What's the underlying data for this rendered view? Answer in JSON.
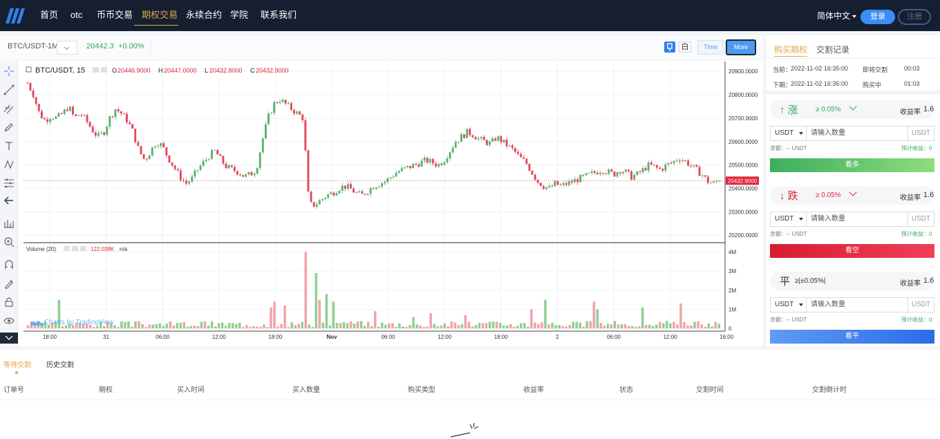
{
  "nav": {
    "items": [
      "首页",
      "otc",
      "币币交易",
      "期权交易",
      "永续合约",
      "学院",
      "联系我们"
    ],
    "active_index": 3,
    "language": "简体中文",
    "login": "登录",
    "register": "注册"
  },
  "chart_toolbar": {
    "symbol": "BTC/USDT-1M",
    "price": "20442.3",
    "change": "+0.00%",
    "theme_label": "白",
    "time_label": "Time",
    "more_label": "More"
  },
  "chart_data": {
    "type": "candlestick",
    "legend_symbol": "BTC/USDT, 15",
    "ohlc": {
      "O": "20446.9000",
      "H": "20447.0000",
      "L": "20432.8000",
      "C": "20432.9000"
    },
    "current_price_label": "20432.9000",
    "current_price": 20432.9,
    "y_ticks": [
      "20900.0000",
      "20800.0000",
      "20700.0000",
      "20600.0000",
      "20500.0000",
      "20400.0000",
      "20300.0000",
      "20200.0000"
    ],
    "ylim": [
      20180,
      20930
    ],
    "x_ticks": [
      "18:00",
      "31",
      "06:00",
      "12:00",
      "18:00",
      "Nov",
      "06:00",
      "12:00",
      "18:00",
      "2",
      "06:00",
      "12:00",
      "16:00"
    ],
    "close_path": [
      20850,
      20800,
      20720,
      20690,
      20710,
      20700,
      20720,
      20750,
      20700,
      20720,
      20690,
      20650,
      20620,
      20640,
      20700,
      20740,
      20720,
      20690,
      20640,
      20560,
      20520,
      20560,
      20600,
      20580,
      20530,
      20490,
      20450,
      20420,
      20440,
      20480,
      20510,
      20540,
      20560,
      20520,
      20490,
      20480,
      20470,
      20450,
      20460,
      20480,
      20600,
      20700,
      20760,
      20780,
      20760,
      20740,
      20720,
      20700,
      20330,
      20330,
      20350,
      20370,
      20380,
      20400,
      20410,
      20400,
      20380,
      20370,
      20390,
      20410,
      20420,
      20430,
      20450,
      20470,
      20480,
      20490,
      20500,
      20510,
      20520,
      20510,
      20500,
      20520,
      20560,
      20600,
      20620,
      20640,
      20630,
      20610,
      20600,
      20590,
      20620,
      20600,
      20580,
      20560,
      20530,
      20510,
      20470,
      20430,
      20410,
      20400,
      20420,
      20410,
      20420,
      20430,
      20440,
      20450,
      20460,
      20470,
      20480,
      20470,
      20460,
      20480,
      20470,
      20450,
      20460,
      20480,
      20500,
      20490,
      20480,
      20500,
      20510,
      20530,
      20520,
      20500,
      20480,
      20460,
      20430,
      20420,
      20440
    ],
    "volume_label": "Volume (20)",
    "volume_value": "122.038K",
    "volume_na": "n/a",
    "volume_ticks": [
      "4M",
      "3M",
      "2M",
      "1M",
      "0"
    ],
    "volume_max": 4200000,
    "volume_spikes": [
      [
        80,
        4000000
      ],
      [
        83,
        2900000
      ],
      [
        86,
        1800000
      ],
      [
        84,
        1500000
      ],
      [
        88,
        1400000
      ],
      [
        71,
        1400000
      ],
      [
        70,
        1100000
      ],
      [
        74,
        1200000
      ],
      [
        9,
        1500000
      ],
      [
        149,
        1500000
      ],
      [
        163,
        1400000
      ],
      [
        188,
        1300000
      ],
      [
        177,
        1100000
      ],
      [
        164,
        1000000
      ],
      [
        100,
        900000
      ],
      [
        145,
        1000000
      ],
      [
        111,
        600000
      ],
      [
        116,
        800000
      ],
      [
        126,
        700000
      ]
    ],
    "watermark": "Charts by TradingView"
  },
  "right_panel": {
    "tabs": [
      "购买期权",
      "交割记录"
    ],
    "current_period": {
      "label": "当前：",
      "time": "2022-11-02 16:35:00",
      "status": "即将交割",
      "countdown": "00:03"
    },
    "next_period": {
      "label": "下期：",
      "time": "2022-11-02 16:36:00",
      "status": "购买中",
      "countdown": "01:03"
    },
    "options": [
      {
        "title": "↑ 涨",
        "threshold": "≥ 0.05%",
        "rate_label": "收益率",
        "rate": "1.6",
        "currency": "USDT",
        "placeholder": "请输入数量",
        "unit": "USDT",
        "balance": "余额：-- USDT",
        "expected": "预计收益：0",
        "button": "看多",
        "color": "#35a85c"
      },
      {
        "title": "↓ 跌",
        "threshold": "≥ 0.05%",
        "rate_label": "收益率",
        "rate": "1.6",
        "currency": "USDT",
        "placeholder": "请输入数量",
        "unit": "USDT",
        "balance": "余额：-- USDT",
        "expected": "预计收益：0",
        "button": "看空",
        "color": "#e0243a"
      },
      {
        "title": "平",
        "threshold": "≥|±0.05%|",
        "rate_label": "收益率",
        "rate": "1.6",
        "currency": "USDT",
        "placeholder": "请输入数量",
        "unit": "USDT",
        "balance": "余额：-- USDT",
        "expected": "预计收益：0",
        "button": "看平",
        "color": "#333333"
      }
    ]
  },
  "bottom": {
    "tabs": [
      "等待交割",
      "历史交割"
    ],
    "columns": [
      "订单号",
      "期权",
      "买入时间",
      "买入数量",
      "购买类型",
      "收益率",
      "状态",
      "交割时间",
      "交割倒计时"
    ]
  }
}
